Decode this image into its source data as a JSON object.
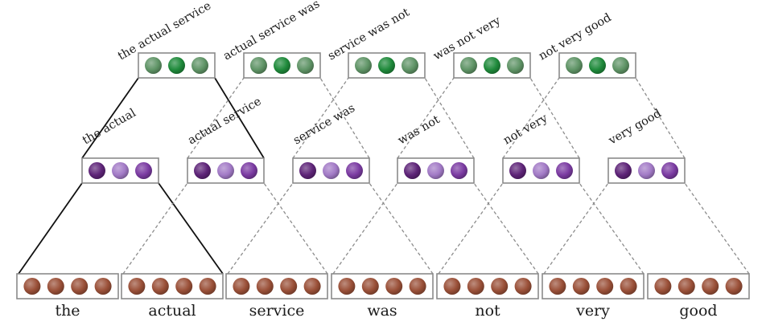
{
  "colors": {
    "word_cell": "#9a5038",
    "bigram_cells": [
      "#5e2478",
      "#a27ac6",
      "#7b3ba2"
    ],
    "trigram_cells": [
      "#5f9466",
      "#1f8a3b",
      "#5f9466"
    ],
    "box_border": "#8a8a8a",
    "solid_line": "#111111",
    "dashed_line": "#8c8c8c"
  },
  "words": [
    "the",
    "actual",
    "service",
    "was",
    "not",
    "very",
    "good"
  ],
  "bigrams": [
    "the actual",
    "actual service",
    "service was",
    "was not",
    "not very",
    "very good"
  ],
  "trigrams": [
    "the actual service",
    "actual service was",
    "service was not",
    "was not very",
    "not very good"
  ]
}
